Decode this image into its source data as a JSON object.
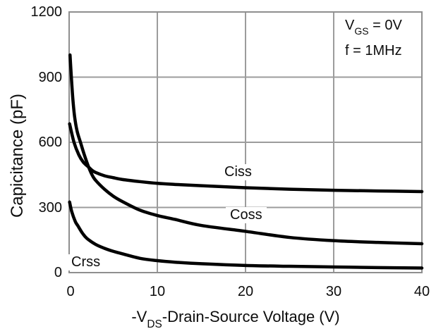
{
  "chart_data": {
    "type": "line",
    "title": "",
    "xlabel": "-VDS-Drain-Source Voltage (V)",
    "ylabel": "Capicitance (pF)",
    "xlim": [
      0,
      40
    ],
    "ylim": [
      0,
      1200
    ],
    "x_ticks": [
      0,
      10,
      20,
      30,
      40
    ],
    "y_ticks": [
      0,
      300,
      600,
      900,
      1200
    ],
    "grid": true,
    "legend_position": "inline-labels",
    "conditions": [
      "VGS = 0V",
      "f = 1MHz"
    ],
    "series": [
      {
        "name": "Ciss",
        "label": "Ciss",
        "points": [
          [
            0.05,
            685
          ],
          [
            0.55,
            600
          ],
          [
            1.1,
            542
          ],
          [
            1.6,
            509
          ],
          [
            2.2,
            486
          ],
          [
            2.6,
            471
          ],
          [
            3,
            461
          ],
          [
            4,
            446
          ],
          [
            5,
            437
          ],
          [
            6,
            429
          ],
          [
            8,
            419
          ],
          [
            10,
            411
          ],
          [
            12,
            406
          ],
          [
            15,
            400
          ],
          [
            20,
            391
          ],
          [
            25,
            384
          ],
          [
            30,
            379
          ],
          [
            35,
            376
          ],
          [
            40,
            373
          ]
        ]
      },
      {
        "name": "Coss",
        "label": "Coss",
        "points": [
          [
            0.1,
            1002
          ],
          [
            0.25,
            900
          ],
          [
            0.42,
            800
          ],
          [
            0.62,
            718
          ],
          [
            0.9,
            652
          ],
          [
            1.3,
            598
          ],
          [
            1.7,
            545
          ],
          [
            2.2,
            487
          ],
          [
            2.6,
            450
          ],
          [
            3,
            425
          ],
          [
            4,
            384
          ],
          [
            5,
            352
          ],
          [
            6,
            328
          ],
          [
            8,
            288
          ],
          [
            10,
            263
          ],
          [
            12,
            245
          ],
          [
            15,
            217
          ],
          [
            20,
            190
          ],
          [
            25,
            162
          ],
          [
            30,
            147
          ],
          [
            35,
            139
          ],
          [
            40,
            133
          ]
        ]
      },
      {
        "name": "Crss",
        "label": "Crss",
        "points": [
          [
            0.05,
            325
          ],
          [
            0.3,
            280
          ],
          [
            0.7,
            235
          ],
          [
            1,
            215
          ],
          [
            1.5,
            182
          ],
          [
            2,
            158
          ],
          [
            3,
            130
          ],
          [
            4,
            112
          ],
          [
            5,
            98
          ],
          [
            6,
            87
          ],
          [
            8,
            66
          ],
          [
            10,
            55
          ],
          [
            12,
            48
          ],
          [
            15,
            41
          ],
          [
            20,
            33
          ],
          [
            25,
            29
          ],
          [
            30,
            26
          ],
          [
            35,
            23
          ],
          [
            40,
            21
          ]
        ]
      }
    ]
  },
  "labels": {
    "y_axis_title": "Capicitance (pF)",
    "x_axis_title": {
      "pre": "-V",
      "sub": "DS",
      "post": "-Drain-Source Voltage (V)"
    },
    "annotation": {
      "vgs_pre": "V",
      "vgs_sub": "GS",
      "vgs_post": " = 0V",
      "freq": "f = 1MHz"
    }
  },
  "colors": {
    "curve": "#000000",
    "grid": "#9c9c9c",
    "border": "#8f8f8f",
    "text": "#0d0d0d",
    "background": "#ffffff"
  }
}
